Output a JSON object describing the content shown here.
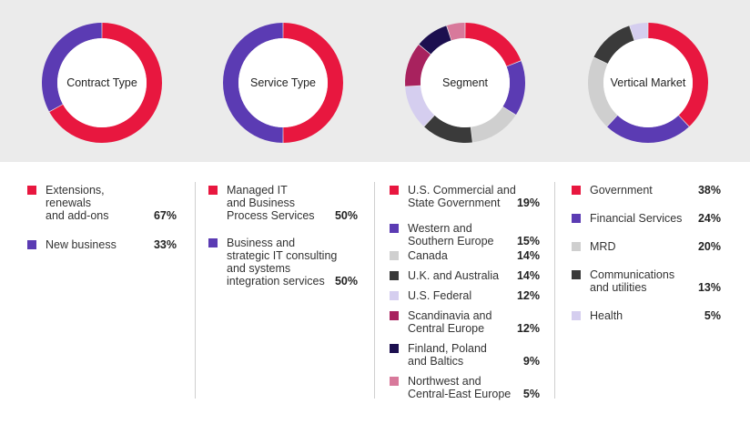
{
  "chart_data": [
    {
      "type": "pie",
      "title": "Contract Type",
      "series": [
        {
          "name": "Extensions,\nrenewals\nand add-ons",
          "value": 67,
          "label": "67%",
          "color": "#e8173f"
        },
        {
          "name": "New business",
          "value": 33,
          "label": "33%",
          "color": "#5b3bb3"
        }
      ]
    },
    {
      "type": "pie",
      "title": "Service Type",
      "series": [
        {
          "name": "Managed IT\nand Business\nProcess Services",
          "value": 50,
          "label": "50%",
          "color": "#e8173f"
        },
        {
          "name": "Business and\nstrategic IT consulting\nand systems\nintegration services",
          "value": 50,
          "label": "50%",
          "color": "#5b3bb3"
        }
      ]
    },
    {
      "type": "pie",
      "title": "Segment",
      "series": [
        {
          "name": "U.S. Commercial and\nState Government",
          "value": 19,
          "label": "19%",
          "color": "#e8173f"
        },
        {
          "name": "Western and\nSouthern Europe",
          "value": 15,
          "label": "15%",
          "color": "#5b3bb3"
        },
        {
          "name": "Canada",
          "value": 14,
          "label": "14%",
          "color": "#cfcfcf"
        },
        {
          "name": "U.K. and Australia",
          "value": 14,
          "label": "14%",
          "color": "#3a3a3a"
        },
        {
          "name": "U.S. Federal",
          "value": 12,
          "label": "12%",
          "color": "#d5ceef"
        },
        {
          "name": "Scandinavia and\nCentral Europe",
          "value": 12,
          "label": "12%",
          "color": "#a8225e"
        },
        {
          "name": "Finland, Poland\nand Baltics",
          "value": 9,
          "label": "9%",
          "color": "#1c0f4f"
        },
        {
          "name": "Northwest and\nCentral-East Europe",
          "value": 5,
          "label": "5%",
          "color": "#d8799b"
        }
      ]
    },
    {
      "type": "pie",
      "title": "Vertical Market",
      "series": [
        {
          "name": "Government",
          "value": 38,
          "label": "38%",
          "color": "#e8173f"
        },
        {
          "name": "Financial Services",
          "value": 24,
          "label": "24%",
          "color": "#5b3bb3"
        },
        {
          "name": "MRD",
          "value": 20,
          "label": "20%",
          "color": "#cfcfcf"
        },
        {
          "name": "Communications\nand utilities",
          "value": 13,
          "label": "13%",
          "color": "#3a3a3a"
        },
        {
          "name": "Health",
          "value": 5,
          "label": "5%",
          "color": "#d5ceef"
        }
      ]
    }
  ]
}
